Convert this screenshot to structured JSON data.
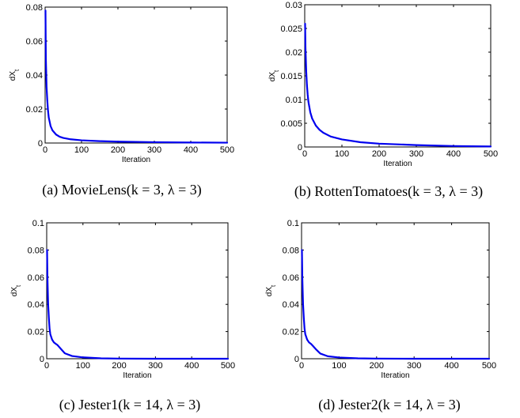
{
  "chart_data": [
    {
      "type": "line",
      "caption": "(a) MovieLens(k = 3, λ = 3)",
      "xlabel": "Iteration",
      "ylabel": "dX_t",
      "xlim": [
        0,
        500
      ],
      "ylim": [
        0,
        0.08
      ],
      "xticks": [
        "0",
        "100",
        "200",
        "300",
        "400",
        "500"
      ],
      "yticks": [
        "0",
        "0.02",
        "0.04",
        "0.06",
        "0.08"
      ],
      "series": [
        {
          "x": [
            1,
            2,
            4,
            6,
            8,
            10,
            15,
            20,
            30,
            40,
            50,
            70,
            100,
            150,
            200,
            300,
            400,
            500
          ],
          "y": [
            0.078,
            0.05,
            0.033,
            0.025,
            0.019,
            0.015,
            0.01,
            0.0075,
            0.005,
            0.0037,
            0.003,
            0.0022,
            0.0016,
            0.0011,
            0.0008,
            0.0005,
            0.0003,
            0.0002
          ]
        }
      ]
    },
    {
      "type": "line",
      "caption": "(b) RottenTomatoes(k = 3, λ = 3)",
      "xlabel": "Iteration",
      "ylabel": "dX_t",
      "xlim": [
        0,
        500
      ],
      "ylim": [
        0,
        0.03
      ],
      "xticks": [
        "0",
        "100",
        "200",
        "300",
        "400",
        "500"
      ],
      "yticks": [
        "0",
        "0.005",
        "0.01",
        "0.015",
        "0.02",
        "0.025",
        "0.03"
      ],
      "series": [
        {
          "x": [
            1,
            2,
            4,
            6,
            8,
            10,
            15,
            20,
            30,
            40,
            50,
            70,
            100,
            150,
            200,
            300,
            400,
            500
          ],
          "y": [
            0.026,
            0.021,
            0.016,
            0.013,
            0.011,
            0.0095,
            0.0073,
            0.006,
            0.0045,
            0.0036,
            0.003,
            0.0022,
            0.0016,
            0.001,
            0.0007,
            0.0004,
            0.0002,
            0.0001
          ]
        }
      ]
    },
    {
      "type": "line",
      "caption": "(c) Jester1(k = 14, λ = 3)",
      "xlabel": "Iteration",
      "ylabel": "dX_t",
      "xlim": [
        0,
        500
      ],
      "ylim": [
        0,
        0.1
      ],
      "xticks": [
        "0",
        "100",
        "200",
        "300",
        "400",
        "500"
      ],
      "yticks": [
        "0",
        "0.02",
        "0.04",
        "0.06",
        "0.08",
        "0.1"
      ],
      "series": [
        {
          "x": [
            1,
            2,
            4,
            6,
            8,
            10,
            15,
            20,
            25,
            30,
            40,
            50,
            70,
            100,
            150,
            200,
            300,
            400,
            500
          ],
          "y": [
            0.08,
            0.06,
            0.04,
            0.03,
            0.022,
            0.018,
            0.014,
            0.012,
            0.011,
            0.01,
            0.007,
            0.004,
            0.002,
            0.001,
            0.0003,
            0.0001,
            0,
            0,
            0
          ]
        }
      ]
    },
    {
      "type": "line",
      "caption": "(d) Jester2(k = 14, λ = 3)",
      "xlabel": "Iteration",
      "ylabel": "dX_t",
      "xlim": [
        0,
        500
      ],
      "ylim": [
        0,
        0.1
      ],
      "xticks": [
        "0",
        "100",
        "200",
        "300",
        "400",
        "500"
      ],
      "yticks": [
        "0",
        "0.02",
        "0.04",
        "0.06",
        "0.08",
        "0.1"
      ],
      "series": [
        {
          "x": [
            1,
            2,
            4,
            6,
            8,
            10,
            15,
            20,
            25,
            30,
            40,
            50,
            70,
            100,
            150,
            200,
            300,
            400,
            500
          ],
          "y": [
            0.08,
            0.06,
            0.04,
            0.03,
            0.022,
            0.018,
            0.014,
            0.012,
            0.011,
            0.0095,
            0.0065,
            0.0038,
            0.0018,
            0.0009,
            0.0003,
            0.0001,
            0,
            0,
            0
          ]
        }
      ]
    }
  ],
  "colors": {
    "line": "#0000ee"
  }
}
